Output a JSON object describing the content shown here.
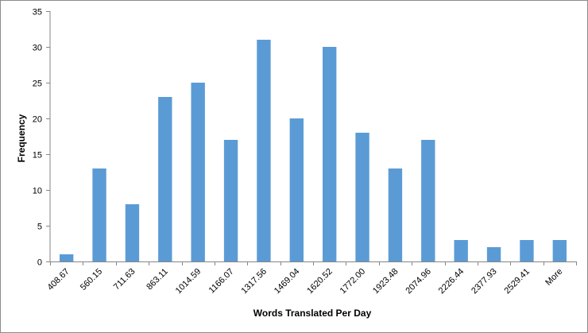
{
  "chart_data": {
    "type": "bar",
    "title": "",
    "xlabel": "Words Translated Per Day",
    "ylabel": "Frequency",
    "categories": [
      "408.67",
      "560.15",
      "711.63",
      "863.11",
      "1014.59",
      "1166.07",
      "1317.56",
      "1469.04",
      "1620.52",
      "1772.00",
      "1923.48",
      "2074.96",
      "2226.44",
      "2377.93",
      "2529.41",
      "More"
    ],
    "values": [
      1,
      13,
      8,
      23,
      25,
      17,
      31,
      20,
      30,
      18,
      13,
      17,
      3,
      2,
      3,
      3
    ],
    "ylim": [
      0,
      35
    ],
    "yticks": [
      "0",
      "5",
      "10",
      "15",
      "20",
      "25",
      "30",
      "35"
    ],
    "grid": false,
    "legend": "none",
    "bar_color": "#5b9bd5",
    "axis_color": "#868686"
  }
}
